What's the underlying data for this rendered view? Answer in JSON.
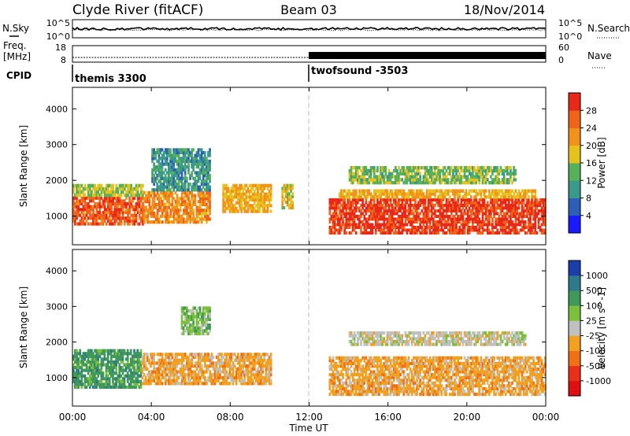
{
  "header": {
    "station": "Clyde River (fitACF)",
    "beam": "Beam 03",
    "date": "18/Nov/2014"
  },
  "top_panels": {
    "nsky_label": "N.Sky",
    "nsky_ticks": [
      "10^5",
      "10^0"
    ],
    "nsearch_label": "N.Search",
    "nsearch_ticks": [
      "10^5",
      "10^0"
    ],
    "freq_label_1": "Freq.",
    "freq_label_2": "[MHz]",
    "freq_ticks": [
      "18",
      "8"
    ],
    "nave_label": "Nave",
    "nave_ticks": [
      "60",
      "0"
    ],
    "cpid_label": "CPID",
    "cpid_segments": [
      {
        "name": "themis 3300",
        "start_hour": 0
      },
      {
        "name": "twofsound -3503",
        "start_hour": 12
      }
    ]
  },
  "x_axis": {
    "label": "Time UT",
    "ticks": [
      "00:00",
      "04:00",
      "08:00",
      "12:00",
      "16:00",
      "20:00",
      "00:00"
    ],
    "range_hours": [
      0,
      24
    ]
  },
  "chart_data": [
    {
      "type": "heatmap",
      "ylabel": "Slant Range [km]",
      "yticks": [
        "1000",
        "2000",
        "3000",
        "4000"
      ],
      "ylim": [
        200,
        4600
      ],
      "xlim_hours": [
        0,
        24
      ],
      "colorbar": {
        "label": "Power [dB]",
        "ticks": [
          "4",
          "8",
          "12",
          "16",
          "20",
          "24",
          "28"
        ],
        "range": [
          0,
          32
        ],
        "colors": [
          "#1a1aff",
          "#2d5fb8",
          "#3a9a8a",
          "#57b05a",
          "#e6c21e",
          "#f2921a",
          "#f0641a",
          "#e82818"
        ]
      },
      "regions": [
        {
          "t0": 0.0,
          "t1": 3.6,
          "r0": 750,
          "r1": 1550,
          "value": 27
        },
        {
          "t0": 0.0,
          "t1": 3.6,
          "r0": 1550,
          "r1": 1900,
          "value": 16
        },
        {
          "t0": 3.6,
          "t1": 7.0,
          "r0": 800,
          "r1": 1700,
          "value": 23
        },
        {
          "t0": 4.0,
          "t1": 7.0,
          "r0": 1700,
          "r1": 2900,
          "value": 10
        },
        {
          "t0": 7.6,
          "t1": 10.1,
          "r0": 1100,
          "r1": 1900,
          "value": 20
        },
        {
          "t0": 10.6,
          "t1": 11.2,
          "r0": 1200,
          "r1": 1900,
          "value": 18
        },
        {
          "t0": 13.0,
          "t1": 24.0,
          "r0": 500,
          "r1": 1500,
          "value": 29
        },
        {
          "t0": 13.5,
          "t1": 23.5,
          "r0": 1500,
          "r1": 1750,
          "value": 20
        },
        {
          "t0": 14.0,
          "t1": 22.5,
          "r0": 1900,
          "r1": 2400,
          "value": 15
        }
      ]
    },
    {
      "type": "heatmap",
      "ylabel": "Slant Range [km]",
      "yticks": [
        "1000",
        "2000",
        "3000",
        "4000"
      ],
      "ylim": [
        200,
        4600
      ],
      "xlim_hours": [
        0,
        24
      ],
      "colorbar": {
        "label": "Velocity [m s^-1]",
        "ticks": [
          "1000",
          "500",
          "100",
          "25",
          "-25",
          "-100",
          "-500",
          "-1000"
        ],
        "colors": [
          "#1c3ea8",
          "#2f7a8a",
          "#3f9a5a",
          "#7cbf3c",
          "#c0c0c0",
          "#f2a020",
          "#f07018",
          "#e83018",
          "#e01010"
        ]
      },
      "regions": [
        {
          "t0": 0.0,
          "t1": 3.5,
          "r0": 700,
          "r1": 1800,
          "value": 100
        },
        {
          "t0": 3.5,
          "t1": 10.1,
          "r0": 800,
          "r1": 1700,
          "value": -100
        },
        {
          "t0": 5.5,
          "t1": 7.0,
          "r0": 2200,
          "r1": 3000,
          "value": 25
        },
        {
          "t0": 13.0,
          "t1": 24.0,
          "r0": 500,
          "r1": 1600,
          "value": -100
        },
        {
          "t0": 14.0,
          "t1": 23.0,
          "r0": 1900,
          "r1": 2300,
          "value": -25
        }
      ]
    }
  ]
}
